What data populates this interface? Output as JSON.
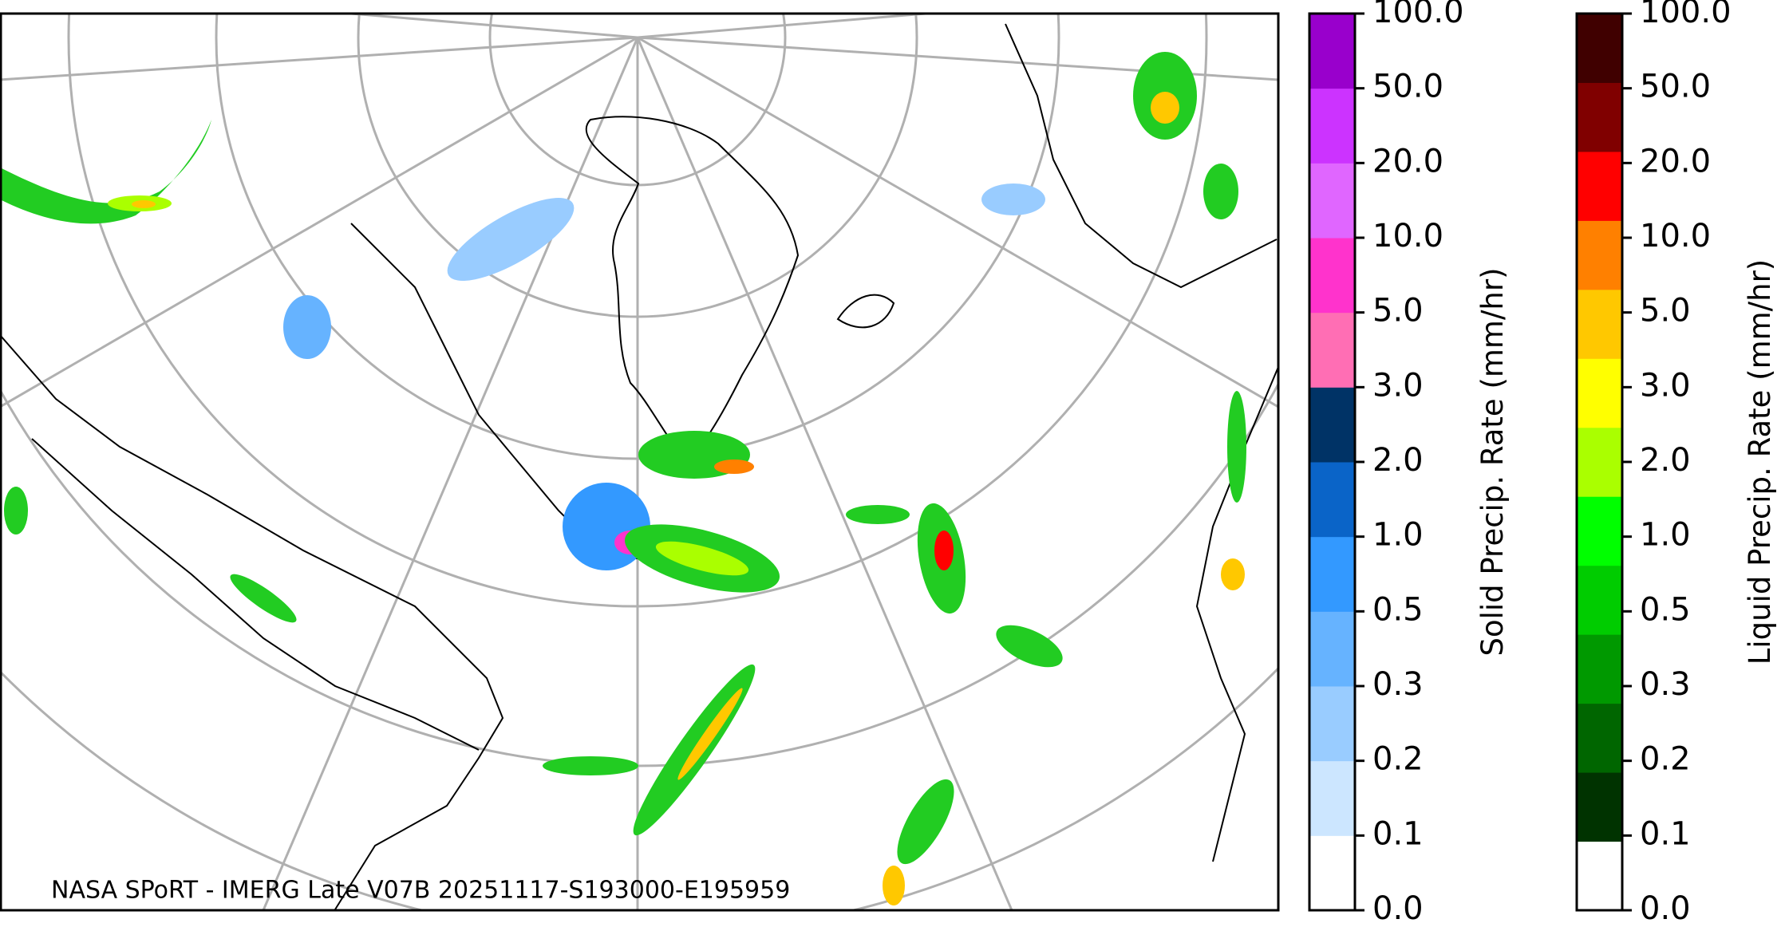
{
  "map": {
    "caption": "NASA SPoRT - IMERG Late V07B 20251117-S193000-E195959"
  },
  "colorbars": [
    {
      "label": "Solid Precip. Rate (mm/hr)",
      "ticks": [
        "0.0",
        "0.1",
        "0.2",
        "0.3",
        "0.5",
        "1.0",
        "2.0",
        "3.0",
        "5.0",
        "10.0",
        "20.0",
        "50.0",
        "100.0"
      ],
      "colors": [
        "#ffffff",
        "#cce6ff",
        "#99ccff",
        "#66b3ff",
        "#3399ff",
        "#0a64c8",
        "#003366",
        "#ff6eb4",
        "#ff33cc",
        "#e066ff",
        "#cc33ff",
        "#9900cc"
      ]
    },
    {
      "label": "Liquid Precip. Rate (mm/hr)",
      "ticks": [
        "0.0",
        "0.1",
        "0.2",
        "0.3",
        "0.5",
        "1.0",
        "2.0",
        "3.0",
        "5.0",
        "10.0",
        "20.0",
        "50.0",
        "100.0"
      ],
      "colors": [
        "#ffffff",
        "#003300",
        "#006600",
        "#009900",
        "#00cc00",
        "#00ff00",
        "#aaff00",
        "#ffff00",
        "#ffc800",
        "#ff8000",
        "#ff0000",
        "#800000",
        "#400000"
      ]
    }
  ]
}
